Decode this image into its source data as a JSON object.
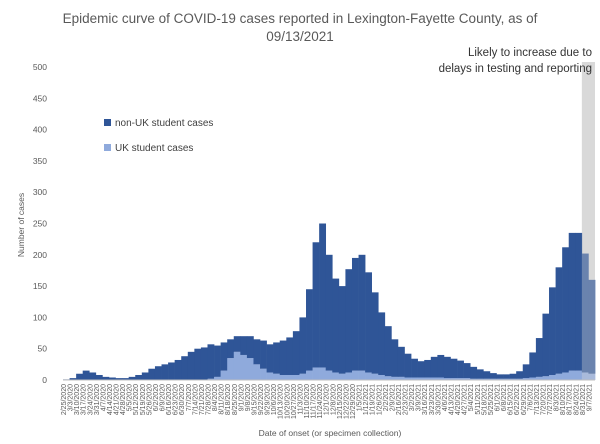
{
  "chart_data": {
    "type": "bar",
    "stacked": true,
    "title": "Epidemic curve of COVID-19 cases reported in Lexington-Fayette County, as of 09/13/2021",
    "xlabel": "Date of onset (or specimen collection)",
    "ylabel": "Number of cases",
    "ylim": [
      0,
      500
    ],
    "yticks": [
      0,
      50,
      100,
      150,
      200,
      250,
      300,
      350,
      400,
      450,
      500
    ],
    "grid": false,
    "legend_position": "upper-left",
    "colors": {
      "non_uk": "#2F5597",
      "uk": "#8FAADC",
      "shade": "#D9D9D9"
    },
    "annotation": "Likely to increase due to delays in testing and reporting",
    "shaded_period": [
      "8/31/2021",
      "9/13/2021"
    ],
    "x_start": "2/25/2020",
    "x_end": "9/13/2021",
    "categories": [
      "2/25/2020",
      "3/3/2020",
      "3/10/2020",
      "3/17/2020",
      "3/24/2020",
      "3/31/2020",
      "4/7/2020",
      "4/14/2020",
      "4/21/2020",
      "4/28/2020",
      "5/5/2020",
      "5/12/2020",
      "5/19/2020",
      "5/26/2020",
      "6/2/2020",
      "6/9/2020",
      "6/16/2020",
      "6/23/2020",
      "6/30/2020",
      "7/7/2020",
      "7/14/2020",
      "7/21/2020",
      "7/28/2020",
      "8/4/2020",
      "8/11/2020",
      "8/18/2020",
      "8/25/2020",
      "9/1/2020",
      "9/8/2020",
      "9/15/2020",
      "9/22/2020",
      "9/29/2020",
      "10/6/2020",
      "10/13/2020",
      "10/20/2020",
      "10/27/2020",
      "11/3/2020",
      "11/10/2020",
      "11/17/2020",
      "11/24/2020",
      "12/1/2020",
      "12/8/2020",
      "12/15/2020",
      "12/22/2020",
      "12/29/2020",
      "1/5/2021",
      "1/12/2021",
      "1/19/2021",
      "1/26/2021",
      "2/2/2021",
      "2/9/2021",
      "2/16/2021",
      "2/23/2021",
      "3/2/2021",
      "3/9/2021",
      "3/16/2021",
      "3/23/2021",
      "3/30/2021",
      "4/6/2021",
      "4/13/2021",
      "4/20/2021",
      "4/27/2021",
      "5/4/2021",
      "5/11/2021",
      "5/18/2021",
      "5/25/2021",
      "6/1/2021",
      "6/8/2021",
      "6/15/2021",
      "6/22/2021",
      "6/29/2021",
      "7/6/2021",
      "7/13/2021",
      "7/20/2021",
      "7/27/2021",
      "8/3/2021",
      "8/10/2021",
      "8/17/2021",
      "8/24/2021",
      "8/31/2021",
      "9/7/2021"
    ],
    "series": [
      {
        "name": "non-UK student cases",
        "values": [
          1,
          3,
          10,
          15,
          12,
          8,
          5,
          4,
          3,
          3,
          5,
          8,
          12,
          18,
          22,
          25,
          28,
          32,
          38,
          45,
          50,
          52,
          55,
          50,
          45,
          30,
          25,
          30,
          35,
          40,
          45,
          45,
          50,
          55,
          60,
          70,
          90,
          130,
          200,
          230,
          185,
          150,
          140,
          165,
          180,
          185,
          160,
          130,
          100,
          80,
          60,
          48,
          38,
          30,
          26,
          28,
          33,
          36,
          34,
          31,
          28,
          24,
          19,
          15,
          12,
          9,
          7,
          7,
          8,
          12,
          22,
          40,
          62,
          100,
          140,
          170,
          200,
          220,
          220,
          190,
          150
        ]
      },
      {
        "name": "UK student cases",
        "values": [
          0,
          0,
          0,
          0,
          0,
          0,
          0,
          0,
          0,
          0,
          0,
          0,
          0,
          0,
          0,
          0,
          0,
          0,
          0,
          0,
          0,
          0,
          2,
          5,
          15,
          35,
          45,
          40,
          35,
          25,
          18,
          12,
          10,
          8,
          8,
          8,
          10,
          15,
          20,
          20,
          15,
          12,
          10,
          12,
          15,
          15,
          12,
          10,
          8,
          6,
          5,
          5,
          4,
          4,
          4,
          4,
          4,
          4,
          3,
          3,
          3,
          3,
          2,
          2,
          2,
          2,
          2,
          2,
          2,
          2,
          3,
          4,
          5,
          6,
          8,
          10,
          12,
          15,
          15,
          12,
          10
        ]
      }
    ]
  }
}
